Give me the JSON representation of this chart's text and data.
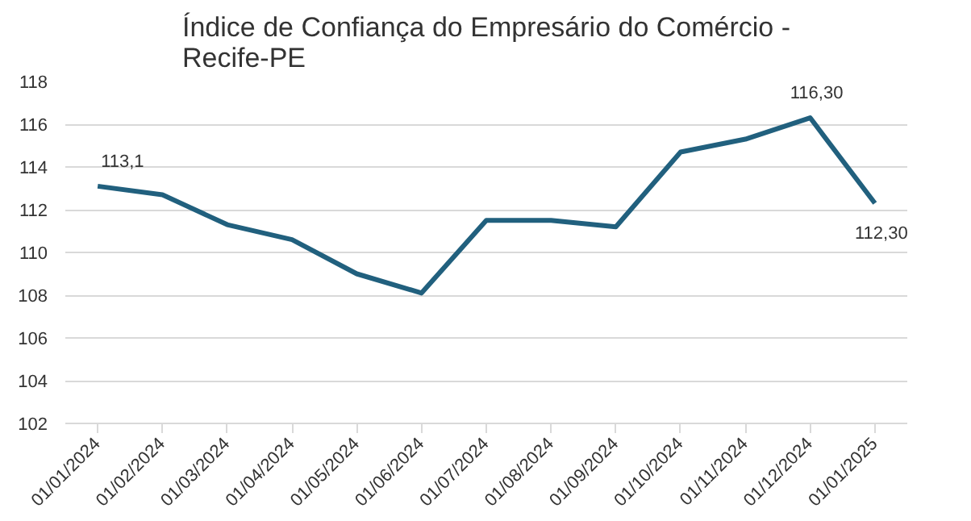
{
  "chart_data": {
    "type": "line",
    "title": "Índice de Confiança do Empresário do Comércio -\nRecife-PE",
    "categories": [
      "01/01/2024",
      "01/02/2024",
      "01/03/2024",
      "01/04/2024",
      "01/05/2024",
      "01/06/2024",
      "01/07/2024",
      "01/08/2024",
      "01/09/2024",
      "01/10/2024",
      "01/11/2024",
      "01/12/2024",
      "01/01/2025"
    ],
    "series": [
      {
        "color": "#21607e",
        "values": [
          113.1,
          112.7,
          111.3,
          110.6,
          109.0,
          108.1,
          111.5,
          111.5,
          111.2,
          114.7,
          115.3,
          116.3,
          112.3
        ],
        "value_labels": [
          "113,1",
          null,
          null,
          null,
          null,
          null,
          null,
          null,
          null,
          null,
          null,
          "116,30",
          "112,30"
        ]
      }
    ],
    "ylim": [
      102,
      118
    ],
    "yticks": [
      102,
      104,
      106,
      108,
      110,
      112,
      114,
      116,
      118
    ],
    "grid": "y",
    "marker": "none",
    "line_style": "solid"
  }
}
